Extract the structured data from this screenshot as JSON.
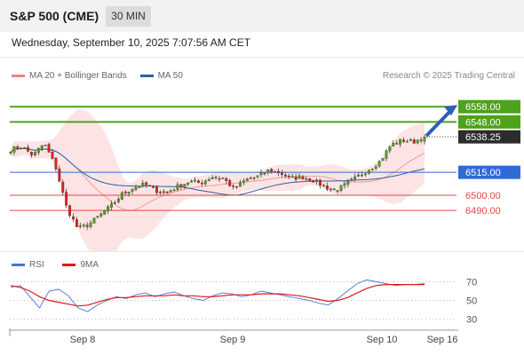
{
  "header": {
    "symbol": "S&P 500 (CME)",
    "timeframe": "30 MIN",
    "datetime": "Wednesday, September 10, 2025 7:07:56 AM CET"
  },
  "legend": {
    "bb_label": "MA 20 + Bollinger Bands",
    "ma50_label": "MA 50",
    "credit": "Research © 2025 Trading Central",
    "bb_color": "#f08080",
    "ma50_color": "#2b5fa8"
  },
  "rsi_legend": {
    "rsi_label": "RSI",
    "ma_label": "9MA",
    "rsi_color": "#4a74d6",
    "ma_color": "#e0161c"
  },
  "colors": {
    "green": "#4ea21c",
    "blue_level": "#2f6bd8",
    "red_level": "#e44646",
    "up": "#4ea21c",
    "down": "#e0211c",
    "arrow": "#2b5fb8",
    "band_fill": "#fce4e4"
  },
  "chart_data": [
    {
      "type": "candlestick",
      "ylim": [
        6468,
        6568
      ],
      "current_price": 6538.25,
      "levels": [
        {
          "value": 6558.0,
          "label": "6558.00",
          "kind": "resistance",
          "color": "#4ea21c"
        },
        {
          "value": 6548.0,
          "label": "6548.00",
          "kind": "resistance",
          "color": "#4ea21c"
        },
        {
          "value": 6538.25,
          "label": "6538.25",
          "kind": "last",
          "color": "#222222"
        },
        {
          "value": 6515.0,
          "label": "6515.00",
          "kind": "pivot",
          "color": "#2f6bd8"
        },
        {
          "value": 6500.0,
          "label": "6500.00",
          "kind": "support",
          "color": "#e44646"
        },
        {
          "value": 6490.0,
          "label": "6490.00",
          "kind": "support",
          "color": "#e44646"
        }
      ],
      "x_ticks": [
        "Sep 8",
        "Sep 9",
        "Sep 10",
        "Sep 16"
      ],
      "key_closes": [
        6530,
        6532,
        6526,
        6534,
        6519,
        6492,
        6478,
        6481,
        6487,
        6493,
        6501,
        6505,
        6507,
        6503,
        6502,
        6506,
        6509,
        6508,
        6512,
        6511,
        6504,
        6510,
        6512,
        6516,
        6515,
        6511,
        6512,
        6510,
        6506,
        6503,
        6507,
        6512,
        6517,
        6522,
        6533,
        6536,
        6535,
        6538
      ]
    },
    {
      "type": "line",
      "ylim": [
        20,
        80
      ],
      "y_ticks": [
        70,
        50,
        30
      ],
      "series": [
        {
          "name": "RSI",
          "values": [
            64,
            66,
            54,
            42,
            60,
            62,
            55,
            42,
            38,
            45,
            50,
            54,
            52,
            56,
            58,
            54,
            57,
            59,
            55,
            52,
            50,
            55,
            58,
            57,
            54,
            56,
            60,
            58,
            56,
            54,
            52,
            50,
            47,
            45,
            52,
            60,
            68,
            72,
            70,
            68,
            66,
            67,
            67,
            68
          ]
        },
        {
          "name": "9MA",
          "values": [
            66,
            64,
            60,
            54,
            50,
            48,
            46,
            44,
            45,
            48,
            51,
            53,
            53,
            54,
            55,
            55,
            55,
            56,
            55,
            55,
            54,
            54,
            55,
            56,
            56,
            56,
            57,
            57,
            57,
            56,
            55,
            53,
            51,
            49,
            50,
            53,
            58,
            63,
            66,
            67,
            67,
            67,
            67,
            67
          ]
        }
      ]
    }
  ]
}
